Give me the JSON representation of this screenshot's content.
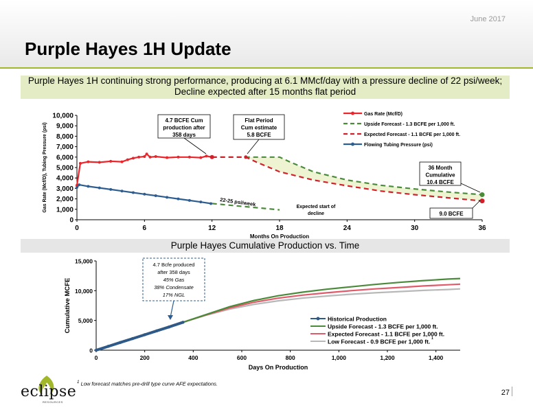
{
  "header": {
    "date": "June 2017",
    "title": "Purple Hayes 1H Update"
  },
  "banner": {
    "line1": "Purple Hayes 1H continuing strong performance, producing at 6.1 MMcf/day with a pressure decline of 22 psi/week;",
    "line2": "Decline expected after 15 months flat period"
  },
  "colors": {
    "accent": "#a3b72a",
    "banner_bg": "#e3ecc4",
    "gas_rate": "#e8262b",
    "tubing": "#2e5d8f",
    "upside": "#4a8a3a",
    "expected": "#d0202a",
    "low": "#b8b8b8",
    "historical": "#2f5a87"
  },
  "chart_data": [
    {
      "type": "line",
      "xlabel": "Months On Production",
      "ylabel": "Gas Rate (Mcf/D), Tubing Pressure (psi)",
      "xlim": [
        0,
        36
      ],
      "ylim": [
        0,
        10000
      ],
      "x_ticks": [
        "0",
        "6",
        "12",
        "18",
        "24",
        "30",
        "36"
      ],
      "y_ticks": [
        "0",
        "1,000",
        "2,000",
        "3,000",
        "4,000",
        "5,000",
        "6,000",
        "7,000",
        "8,000",
        "9,000",
        "10,000"
      ],
      "legend_position": "top-right",
      "series": [
        {
          "name": "Gas Rate (Mcf/D)",
          "x": [
            0,
            0.3,
            1,
            2,
            3,
            4,
            4.5,
            5,
            5.5,
            6,
            6.2,
            6.5,
            7,
            8,
            9,
            10,
            11,
            11.5,
            12
          ],
          "y": [
            3300,
            5400,
            5550,
            5500,
            5600,
            5550,
            5750,
            5900,
            6000,
            6050,
            6300,
            6000,
            6050,
            5950,
            6000,
            6000,
            5950,
            6100,
            6000
          ]
        },
        {
          "name": "Upside Forecast - 1.3 BCFE per 1,000 ft.",
          "x": [
            12,
            15,
            18,
            19,
            21,
            24,
            27,
            30,
            33,
            36
          ],
          "y": [
            6000,
            6000,
            6000,
            5500,
            4600,
            3800,
            3300,
            2950,
            2650,
            2400
          ]
        },
        {
          "name": "Expected Forecast - 1.1 BCFE per 1,000 ft.",
          "x": [
            12,
            15,
            16,
            18,
            21,
            24,
            27,
            30,
            33,
            36
          ],
          "y": [
            6000,
            6000,
            5500,
            4600,
            3800,
            3250,
            2750,
            2400,
            2100,
            1800
          ]
        },
        {
          "name": "Flowing Tubing Pressure (psi)",
          "x": [
            0,
            0.2,
            1,
            2,
            3,
            4,
            5,
            6,
            7,
            8,
            9,
            10,
            11,
            11.9
          ],
          "y": [
            3100,
            3350,
            3200,
            3050,
            2900,
            2750,
            2600,
            2450,
            2300,
            2150,
            2000,
            1850,
            1700,
            1550
          ]
        },
        {
          "name": "",
          "x": [
            12,
            14,
            16,
            18
          ],
          "y": [
            1550,
            1350,
            1150,
            950
          ]
        }
      ],
      "annotations": {
        "cum_box": [
          "4.7 BCFE Cum",
          "production after",
          "358 days"
        ],
        "flat_box": [
          "Flat Period",
          "Cum estimate",
          "5.8 BCFE"
        ],
        "psi_week": "22-25 psi/week",
        "decline_label": [
          "Expected start of",
          "decline"
        ],
        "cum36_box": [
          "36 Month",
          "Cumulative",
          "10.4 BCFE"
        ],
        "bcfe9_box": "9.0 BCFE"
      }
    },
    {
      "type": "line",
      "title": "Purple Hayes Cumulative Production vs. Time",
      "xlabel": "Days On Production",
      "ylabel": "Cumulative MCFE",
      "xlim": [
        0,
        1500
      ],
      "ylim": [
        0,
        15000
      ],
      "x_ticks": [
        "0",
        "200",
        "400",
        "600",
        "800",
        "1,000",
        "1,200",
        "1,400"
      ],
      "y_ticks": [
        "0",
        "5,000",
        "10,000",
        "15,000"
      ],
      "legend_position": "bottom-right",
      "series": [
        {
          "name": "Historical Production",
          "x": [
            0,
            50,
            100,
            150,
            200,
            250,
            300,
            358
          ],
          "y": [
            0,
            650,
            1300,
            1950,
            2600,
            3250,
            3900,
            4700
          ]
        },
        {
          "name": "Upside Forecast - 1.3 BCFE per 1,000 ft.",
          "x": [
            358,
            450,
            550,
            650,
            750,
            850,
            950,
            1050,
            1150,
            1250,
            1350,
            1450,
            1500
          ],
          "y": [
            4700,
            5950,
            7300,
            8350,
            9150,
            9750,
            10250,
            10650,
            11050,
            11400,
            11700,
            11950,
            12050
          ]
        },
        {
          "name": "Expected Forecast - 1.1 BCFE per 1,000 ft.",
          "x": [
            358,
            450,
            550,
            650,
            750,
            850,
            950,
            1050,
            1150,
            1250,
            1350,
            1450,
            1500
          ],
          "y": [
            4700,
            5900,
            7100,
            8050,
            8750,
            9250,
            9650,
            10000,
            10300,
            10550,
            10800,
            11000,
            11100
          ]
        },
        {
          "name": "Low Forecast - 0.9 BCFE per 1,000 ft.",
          "x": [
            358,
            450,
            550,
            650,
            750,
            850,
            950,
            1050,
            1150,
            1250,
            1350,
            1450,
            1500
          ],
          "y": [
            4700,
            5850,
            6900,
            7700,
            8300,
            8750,
            9100,
            9400,
            9650,
            9850,
            10050,
            10200,
            10300
          ]
        }
      ],
      "annotation": {
        "line1": "4.7 Bcfe produced",
        "line2": "after 358 days",
        "line3": "45% Gas",
        "line4": "38% Condensate",
        "line5": "17% NGL"
      },
      "low_legend_suffix": "1"
    }
  ],
  "footnote": {
    "mark": "1",
    "text": " Low forecast matches pre-drill type curve AFE expectations."
  },
  "page": {
    "number": "27"
  },
  "logo": {
    "name": "eclipse",
    "sub": "RESOURCES"
  }
}
